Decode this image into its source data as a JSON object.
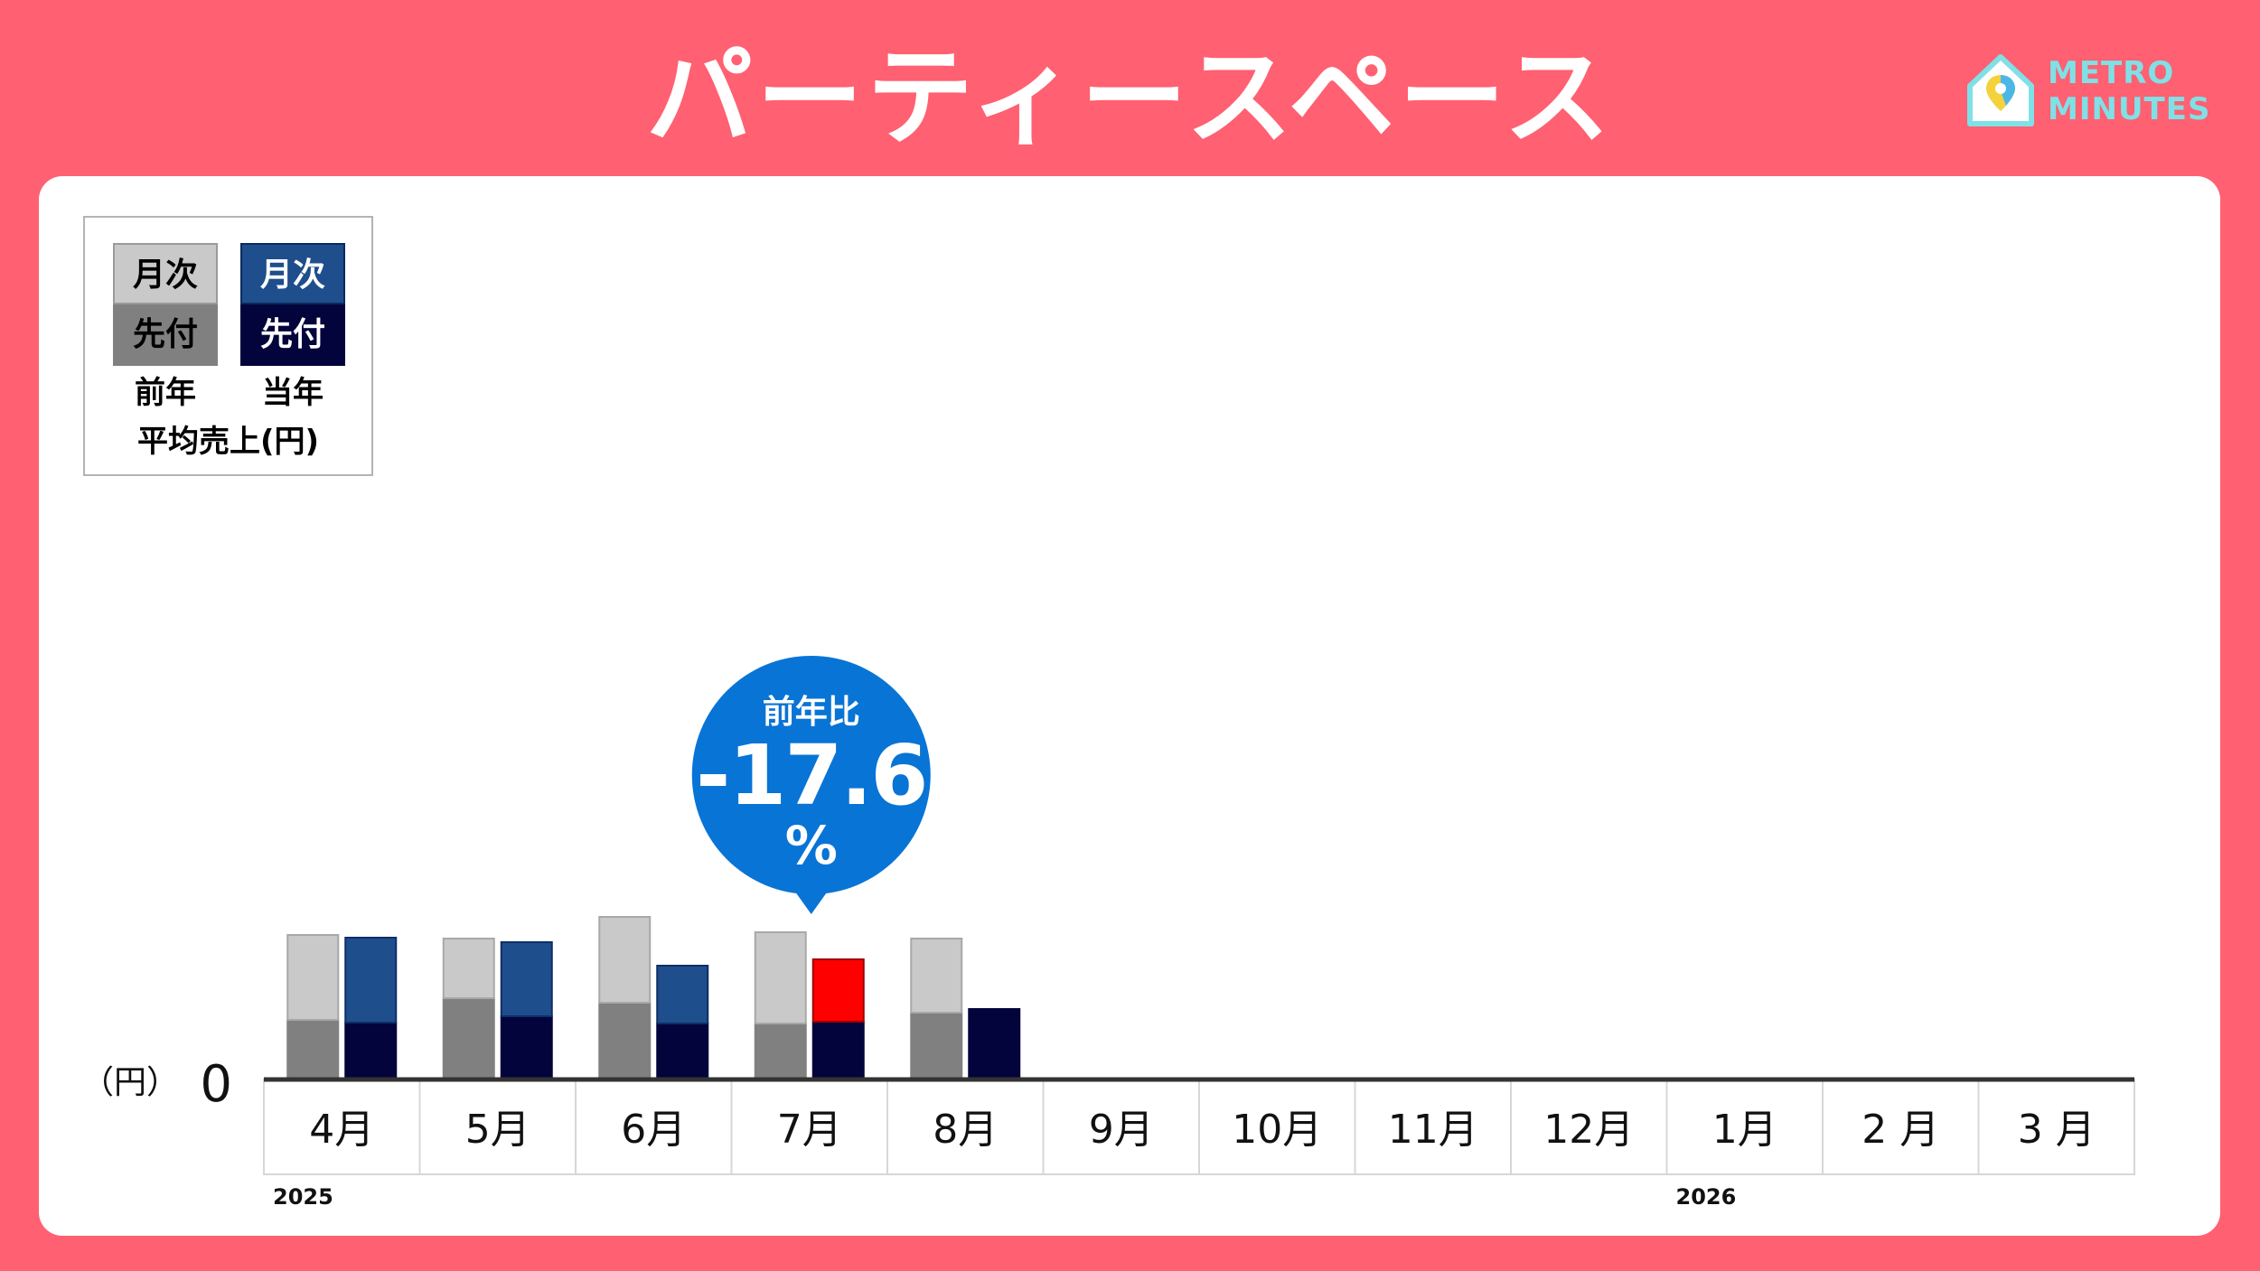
{
  "header": {
    "title": "パーティースペース",
    "logo_line1": "METRO",
    "logo_line2": "MINUTES",
    "logo_icon": "house-map-pin-icon"
  },
  "legend": {
    "monthly_label": "月次",
    "advance_label": "先付",
    "prev_year_label": "前年",
    "curr_year_label": "当年",
    "caption": "平均売上(円)"
  },
  "colors": {
    "background": "#FF6072",
    "prev_monthly": "#C9C9C9",
    "prev_advance": "#808080",
    "curr_monthly": "#1F4E8C",
    "curr_advance": "#04043C",
    "highlight": "#FF0000",
    "bubble": "#0874D6"
  },
  "callout": {
    "label": "前年比",
    "value": "-17.6",
    "unit": "%"
  },
  "chart_data": {
    "type": "bar",
    "stacked": true,
    "categories": [
      "4月",
      "5月",
      "6月",
      "7月",
      "8月",
      "9月",
      "10月",
      "11月",
      "12月",
      "1月",
      "2 月",
      "3 月"
    ],
    "year_labels": [
      {
        "text": "2025",
        "category_index": 0
      },
      {
        "text": "2026",
        "category_index": 9
      }
    ],
    "y_unit_label": "（円）",
    "y_zero_label": "0",
    "ylim": [
      0,
      100
    ],
    "series": [
      {
        "name": "前年 先付",
        "group": "前年",
        "values": [
          66,
          90,
          85,
          62,
          74,
          null,
          null,
          null,
          null,
          null,
          null,
          null
        ]
      },
      {
        "name": "前年 月次",
        "group": "前年",
        "values": [
          94,
          66,
          95,
          101,
          82,
          null,
          null,
          null,
          null,
          null,
          null,
          null
        ]
      },
      {
        "name": "当年 先付",
        "group": "当年",
        "values": [
          63,
          70,
          62,
          64,
          78,
          null,
          null,
          null,
          null,
          null,
          null,
          null
        ]
      },
      {
        "name": "当年 月次",
        "group": "当年",
        "values": [
          94,
          82,
          64,
          69,
          0,
          null,
          null,
          null,
          null,
          null,
          null,
          null
        ]
      }
    ],
    "highlight": {
      "category_index": 3,
      "series": "当年 月次"
    },
    "grid": false
  }
}
